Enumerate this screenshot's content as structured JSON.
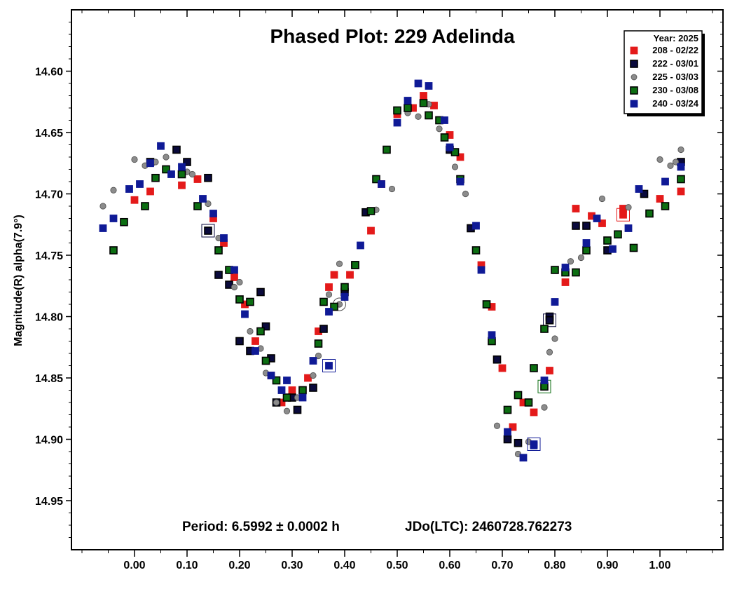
{
  "chart_data": {
    "type": "scatter",
    "title": "Phased Plot: 229 Adelinda",
    "ylabel": "Magnitude(R) alpha(7.9°)",
    "xlabel": "",
    "xlim": [
      -0.12,
      1.12
    ],
    "ylim": [
      14.55,
      14.99
    ],
    "y_inverted": true,
    "grid": false,
    "xticks": [
      0.0,
      0.1,
      0.2,
      0.3,
      0.4,
      0.5,
      0.6,
      0.7,
      0.8,
      0.9,
      1.0
    ],
    "xtick_labels": [
      "0.00",
      "0.10",
      "0.20",
      "0.30",
      "0.40",
      "0.50",
      "0.60",
      "0.70",
      "0.80",
      "0.90",
      "1.00"
    ],
    "yticks": [
      14.6,
      14.65,
      14.7,
      14.75,
      14.8,
      14.85,
      14.9,
      14.95
    ],
    "ytick_labels": [
      "14.60",
      "14.65",
      "14.70",
      "14.75",
      "14.80",
      "14.85",
      "14.90",
      "14.95"
    ],
    "annotations": {
      "period": "Period: 6.5992 ± 0.0002 h",
      "epoch": "JDo(LTC): 2460728.762273"
    },
    "legend": {
      "placement": "top-right",
      "title": "Year: 2025"
    },
    "series": [
      {
        "name": "208 - 02/22",
        "marker": "square",
        "color": "#e41a1a",
        "edge": "#e41a1a",
        "points": [
          [
            0.0,
            14.705
          ],
          [
            0.03,
            14.698
          ],
          [
            0.09,
            14.693
          ],
          [
            0.12,
            14.688
          ],
          [
            0.15,
            14.72
          ],
          [
            0.17,
            14.74
          ],
          [
            0.19,
            14.768
          ],
          [
            0.21,
            14.79
          ],
          [
            0.23,
            14.82
          ],
          [
            0.26,
            14.848
          ],
          [
            0.28,
            14.87
          ],
          [
            0.3,
            14.86
          ],
          [
            0.33,
            14.85
          ],
          [
            0.35,
            14.812
          ],
          [
            0.37,
            14.776
          ],
          [
            0.38,
            14.766
          ],
          [
            0.41,
            14.766
          ],
          [
            0.45,
            14.73
          ],
          [
            0.47,
            14.692
          ],
          [
            0.48,
            14.664
          ],
          [
            0.5,
            14.635
          ],
          [
            0.53,
            14.63
          ],
          [
            0.55,
            14.62
          ],
          [
            0.57,
            14.628
          ],
          [
            0.6,
            14.652
          ],
          [
            0.62,
            14.67
          ],
          [
            0.64,
            14.728
          ],
          [
            0.66,
            14.758
          ],
          [
            0.68,
            14.792
          ],
          [
            0.7,
            14.842
          ],
          [
            0.72,
            14.89
          ],
          [
            0.74,
            14.87
          ],
          [
            0.76,
            14.878
          ],
          [
            0.79,
            14.844
          ],
          [
            0.82,
            14.772
          ],
          [
            0.84,
            14.712
          ],
          [
            0.87,
            14.718
          ],
          [
            0.89,
            14.724
          ],
          [
            0.93,
            14.712
          ],
          [
            1.0,
            14.704
          ],
          [
            1.04,
            14.698
          ]
        ],
        "circled": [
          [
            0.93,
            14.717
          ]
        ]
      },
      {
        "name": "222 - 03/01",
        "marker": "square",
        "color": "#0a0a3c",
        "edge": "#000000",
        "points": [
          [
            0.03,
            14.674
          ],
          [
            0.08,
            14.664
          ],
          [
            0.1,
            14.674
          ],
          [
            0.14,
            14.687
          ],
          [
            0.16,
            14.766
          ],
          [
            0.18,
            14.774
          ],
          [
            0.2,
            14.82
          ],
          [
            0.22,
            14.828
          ],
          [
            0.24,
            14.78
          ],
          [
            0.25,
            14.808
          ],
          [
            0.26,
            14.834
          ],
          [
            0.27,
            14.87
          ],
          [
            0.3,
            14.866
          ],
          [
            0.31,
            14.876
          ],
          [
            0.34,
            14.858
          ],
          [
            0.36,
            14.81
          ],
          [
            0.4,
            14.78
          ],
          [
            0.42,
            14.758
          ],
          [
            0.44,
            14.715
          ],
          [
            0.6,
            14.664
          ],
          [
            0.64,
            14.728
          ],
          [
            0.69,
            14.835
          ],
          [
            0.71,
            14.9
          ],
          [
            0.73,
            14.903
          ],
          [
            0.79,
            14.8
          ],
          [
            0.84,
            14.726
          ],
          [
            0.86,
            14.726
          ],
          [
            0.9,
            14.746
          ],
          [
            0.97,
            14.7
          ],
          [
            1.04,
            14.674
          ]
        ],
        "circled": [
          [
            0.14,
            14.73
          ],
          [
            0.79,
            14.803
          ]
        ]
      },
      {
        "name": "225 - 03/03",
        "marker": "circle",
        "color": "#8c8c8c",
        "edge": "#505050",
        "points": [
          [
            -0.06,
            14.71
          ],
          [
            -0.04,
            14.697
          ],
          [
            0.0,
            14.672
          ],
          [
            0.02,
            14.677
          ],
          [
            0.04,
            14.674
          ],
          [
            0.06,
            14.67
          ],
          [
            0.1,
            14.682
          ],
          [
            0.11,
            14.684
          ],
          [
            0.14,
            14.708
          ],
          [
            0.16,
            14.736
          ],
          [
            0.19,
            14.776
          ],
          [
            0.2,
            14.772
          ],
          [
            0.22,
            14.812
          ],
          [
            0.24,
            14.826
          ],
          [
            0.25,
            14.846
          ],
          [
            0.27,
            14.87
          ],
          [
            0.29,
            14.877
          ],
          [
            0.31,
            14.866
          ],
          [
            0.34,
            14.848
          ],
          [
            0.35,
            14.832
          ],
          [
            0.37,
            14.782
          ],
          [
            0.39,
            14.757
          ],
          [
            0.46,
            14.713
          ],
          [
            0.49,
            14.696
          ],
          [
            0.52,
            14.634
          ],
          [
            0.54,
            14.637
          ],
          [
            0.56,
            14.627
          ],
          [
            0.58,
            14.647
          ],
          [
            0.61,
            14.678
          ],
          [
            0.63,
            14.7
          ],
          [
            0.69,
            14.889
          ],
          [
            0.73,
            14.912
          ],
          [
            0.75,
            14.902
          ],
          [
            0.78,
            14.874
          ],
          [
            0.79,
            14.829
          ],
          [
            0.8,
            14.818
          ],
          [
            0.83,
            14.755
          ],
          [
            0.85,
            14.752
          ],
          [
            0.89,
            14.704
          ],
          [
            0.94,
            14.711
          ],
          [
            1.0,
            14.672
          ],
          [
            1.02,
            14.677
          ],
          [
            1.03,
            14.674
          ],
          [
            1.04,
            14.664
          ]
        ],
        "circled": [
          [
            0.39,
            14.79
          ]
        ]
      },
      {
        "name": "230 - 03/08",
        "marker": "square",
        "color": "#0c6e12",
        "edge": "#000000",
        "points": [
          [
            -0.04,
            14.746
          ],
          [
            -0.02,
            14.723
          ],
          [
            0.02,
            14.71
          ],
          [
            0.04,
            14.687
          ],
          [
            0.06,
            14.68
          ],
          [
            0.09,
            14.684
          ],
          [
            0.12,
            14.71
          ],
          [
            0.16,
            14.746
          ],
          [
            0.18,
            14.762
          ],
          [
            0.2,
            14.786
          ],
          [
            0.22,
            14.788
          ],
          [
            0.24,
            14.812
          ],
          [
            0.25,
            14.836
          ],
          [
            0.27,
            14.852
          ],
          [
            0.29,
            14.866
          ],
          [
            0.32,
            14.86
          ],
          [
            0.35,
            14.822
          ],
          [
            0.36,
            14.788
          ],
          [
            0.38,
            14.792
          ],
          [
            0.4,
            14.776
          ],
          [
            0.42,
            14.758
          ],
          [
            0.45,
            14.714
          ],
          [
            0.46,
            14.688
          ],
          [
            0.48,
            14.664
          ],
          [
            0.5,
            14.632
          ],
          [
            0.52,
            14.63
          ],
          [
            0.55,
            14.626
          ],
          [
            0.56,
            14.636
          ],
          [
            0.58,
            14.64
          ],
          [
            0.59,
            14.654
          ],
          [
            0.61,
            14.666
          ],
          [
            0.62,
            14.688
          ],
          [
            0.65,
            14.746
          ],
          [
            0.67,
            14.79
          ],
          [
            0.68,
            14.82
          ],
          [
            0.71,
            14.876
          ],
          [
            0.73,
            14.864
          ],
          [
            0.75,
            14.87
          ],
          [
            0.76,
            14.842
          ],
          [
            0.78,
            14.81
          ],
          [
            0.8,
            14.762
          ],
          [
            0.82,
            14.764
          ],
          [
            0.84,
            14.764
          ],
          [
            0.86,
            14.746
          ],
          [
            0.9,
            14.738
          ],
          [
            0.92,
            14.733
          ],
          [
            0.95,
            14.744
          ],
          [
            0.98,
            14.716
          ],
          [
            1.01,
            14.71
          ],
          [
            1.04,
            14.688
          ]
        ],
        "circled": [
          [
            0.78,
            14.857
          ]
        ]
      },
      {
        "name": "240 - 03/24",
        "marker": "square",
        "color": "#0f1a96",
        "edge": "#0f1a96",
        "points": [
          [
            -0.06,
            14.728
          ],
          [
            -0.04,
            14.72
          ],
          [
            -0.01,
            14.696
          ],
          [
            0.01,
            14.692
          ],
          [
            0.03,
            14.675
          ],
          [
            0.05,
            14.661
          ],
          [
            0.07,
            14.684
          ],
          [
            0.09,
            14.678
          ],
          [
            0.13,
            14.704
          ],
          [
            0.15,
            14.716
          ],
          [
            0.17,
            14.736
          ],
          [
            0.19,
            14.762
          ],
          [
            0.21,
            14.798
          ],
          [
            0.23,
            14.828
          ],
          [
            0.26,
            14.848
          ],
          [
            0.28,
            14.86
          ],
          [
            0.29,
            14.852
          ],
          [
            0.32,
            14.866
          ],
          [
            0.34,
            14.836
          ],
          [
            0.37,
            14.796
          ],
          [
            0.4,
            14.784
          ],
          [
            0.43,
            14.742
          ],
          [
            0.47,
            14.692
          ],
          [
            0.5,
            14.642
          ],
          [
            0.52,
            14.624
          ],
          [
            0.54,
            14.61
          ],
          [
            0.56,
            14.612
          ],
          [
            0.59,
            14.64
          ],
          [
            0.6,
            14.662
          ],
          [
            0.62,
            14.69
          ],
          [
            0.65,
            14.726
          ],
          [
            0.66,
            14.762
          ],
          [
            0.68,
            14.815
          ],
          [
            0.71,
            14.894
          ],
          [
            0.74,
            14.915
          ],
          [
            0.76,
            14.905
          ],
          [
            0.78,
            14.852
          ],
          [
            0.8,
            14.788
          ],
          [
            0.82,
            14.76
          ],
          [
            0.86,
            14.74
          ],
          [
            0.88,
            14.72
          ],
          [
            0.91,
            14.745
          ],
          [
            0.94,
            14.728
          ],
          [
            0.96,
            14.696
          ],
          [
            1.01,
            14.69
          ],
          [
            1.04,
            14.678
          ]
        ],
        "circled": [
          [
            0.37,
            14.84
          ],
          [
            0.76,
            14.904
          ]
        ]
      }
    ]
  }
}
